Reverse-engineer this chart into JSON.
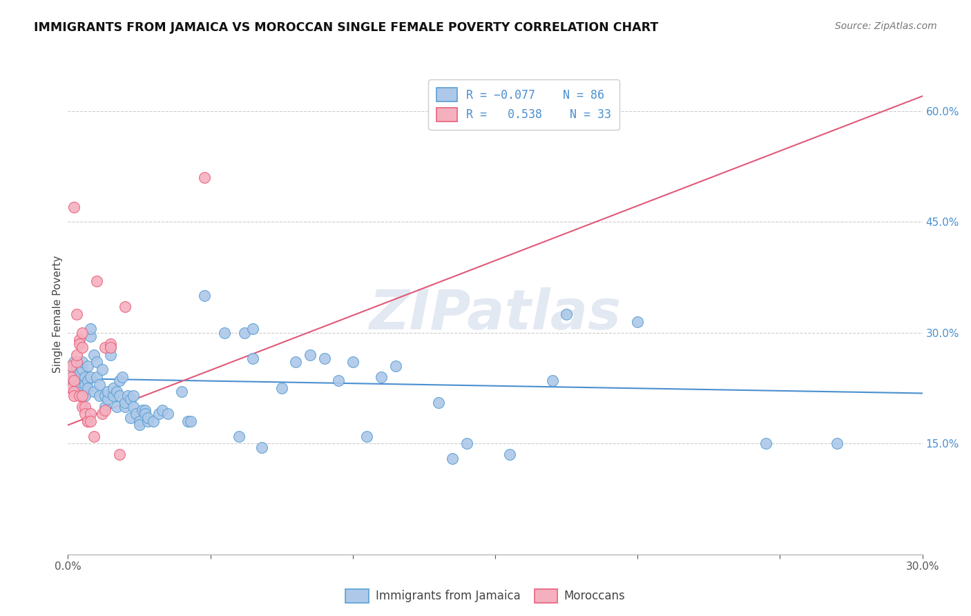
{
  "title": "IMMIGRANTS FROM JAMAICA VS MOROCCAN SINGLE FEMALE POVERTY CORRELATION CHART",
  "source": "Source: ZipAtlas.com",
  "ylabel": "Single Female Poverty",
  "x_min": 0.0,
  "x_max": 0.3,
  "y_min": 0.0,
  "y_max": 0.65,
  "y_ticks_right": [
    0.15,
    0.3,
    0.45,
    0.6
  ],
  "y_tick_labels_right": [
    "15.0%",
    "30.0%",
    "45.0%",
    "60.0%"
  ],
  "legend_label_blue": "Immigrants from Jamaica",
  "legend_label_pink": "Moroccans",
  "blue_color": "#adc8e8",
  "pink_color": "#f5b0c0",
  "blue_edge_color": "#5a9fd4",
  "pink_edge_color": "#e8607a",
  "blue_line_color": "#4a8fd0",
  "pink_line_color": "#e05878",
  "watermark": "ZIPatlas",
  "blue_scatter": [
    [
      0.001,
      0.255
    ],
    [
      0.001,
      0.235
    ],
    [
      0.002,
      0.245
    ],
    [
      0.002,
      0.26
    ],
    [
      0.002,
      0.23
    ],
    [
      0.003,
      0.24
    ],
    [
      0.003,
      0.25
    ],
    [
      0.003,
      0.225
    ],
    [
      0.004,
      0.235
    ],
    [
      0.004,
      0.245
    ],
    [
      0.004,
      0.225
    ],
    [
      0.005,
      0.25
    ],
    [
      0.005,
      0.26
    ],
    [
      0.005,
      0.22
    ],
    [
      0.006,
      0.24
    ],
    [
      0.006,
      0.23
    ],
    [
      0.006,
      0.215
    ],
    [
      0.007,
      0.255
    ],
    [
      0.007,
      0.235
    ],
    [
      0.007,
      0.225
    ],
    [
      0.008,
      0.295
    ],
    [
      0.008,
      0.305
    ],
    [
      0.008,
      0.24
    ],
    [
      0.009,
      0.27
    ],
    [
      0.009,
      0.22
    ],
    [
      0.01,
      0.26
    ],
    [
      0.01,
      0.24
    ],
    [
      0.011,
      0.215
    ],
    [
      0.011,
      0.23
    ],
    [
      0.012,
      0.25
    ],
    [
      0.013,
      0.215
    ],
    [
      0.013,
      0.2
    ],
    [
      0.014,
      0.21
    ],
    [
      0.014,
      0.22
    ],
    [
      0.015,
      0.28
    ],
    [
      0.015,
      0.27
    ],
    [
      0.016,
      0.215
    ],
    [
      0.016,
      0.225
    ],
    [
      0.017,
      0.2
    ],
    [
      0.017,
      0.22
    ],
    [
      0.018,
      0.235
    ],
    [
      0.018,
      0.215
    ],
    [
      0.019,
      0.24
    ],
    [
      0.02,
      0.2
    ],
    [
      0.02,
      0.205
    ],
    [
      0.021,
      0.215
    ],
    [
      0.022,
      0.21
    ],
    [
      0.022,
      0.185
    ],
    [
      0.023,
      0.2
    ],
    [
      0.023,
      0.215
    ],
    [
      0.024,
      0.19
    ],
    [
      0.025,
      0.18
    ],
    [
      0.025,
      0.175
    ],
    [
      0.026,
      0.195
    ],
    [
      0.027,
      0.195
    ],
    [
      0.027,
      0.19
    ],
    [
      0.028,
      0.18
    ],
    [
      0.028,
      0.185
    ],
    [
      0.03,
      0.18
    ],
    [
      0.032,
      0.19
    ],
    [
      0.033,
      0.195
    ],
    [
      0.035,
      0.19
    ],
    [
      0.04,
      0.22
    ],
    [
      0.042,
      0.18
    ],
    [
      0.043,
      0.18
    ],
    [
      0.048,
      0.35
    ],
    [
      0.055,
      0.3
    ],
    [
      0.06,
      0.16
    ],
    [
      0.062,
      0.3
    ],
    [
      0.065,
      0.305
    ],
    [
      0.065,
      0.265
    ],
    [
      0.068,
      0.145
    ],
    [
      0.075,
      0.225
    ],
    [
      0.08,
      0.26
    ],
    [
      0.085,
      0.27
    ],
    [
      0.09,
      0.265
    ],
    [
      0.095,
      0.235
    ],
    [
      0.1,
      0.26
    ],
    [
      0.105,
      0.16
    ],
    [
      0.11,
      0.24
    ],
    [
      0.115,
      0.255
    ],
    [
      0.13,
      0.205
    ],
    [
      0.135,
      0.13
    ],
    [
      0.14,
      0.15
    ],
    [
      0.155,
      0.135
    ],
    [
      0.17,
      0.235
    ],
    [
      0.175,
      0.325
    ],
    [
      0.2,
      0.315
    ],
    [
      0.245,
      0.15
    ],
    [
      0.27,
      0.15
    ]
  ],
  "pink_scatter": [
    [
      0.001,
      0.225
    ],
    [
      0.001,
      0.24
    ],
    [
      0.001,
      0.255
    ],
    [
      0.002,
      0.235
    ],
    [
      0.002,
      0.22
    ],
    [
      0.002,
      0.215
    ],
    [
      0.003,
      0.26
    ],
    [
      0.003,
      0.27
    ],
    [
      0.003,
      0.325
    ],
    [
      0.004,
      0.29
    ],
    [
      0.004,
      0.285
    ],
    [
      0.004,
      0.215
    ],
    [
      0.005,
      0.28
    ],
    [
      0.005,
      0.3
    ],
    [
      0.005,
      0.215
    ],
    [
      0.005,
      0.2
    ],
    [
      0.006,
      0.2
    ],
    [
      0.006,
      0.19
    ],
    [
      0.007,
      0.18
    ],
    [
      0.007,
      0.18
    ],
    [
      0.008,
      0.19
    ],
    [
      0.008,
      0.18
    ],
    [
      0.009,
      0.16
    ],
    [
      0.01,
      0.37
    ],
    [
      0.012,
      0.19
    ],
    [
      0.013,
      0.28
    ],
    [
      0.013,
      0.195
    ],
    [
      0.015,
      0.285
    ],
    [
      0.015,
      0.28
    ],
    [
      0.018,
      0.135
    ],
    [
      0.02,
      0.335
    ],
    [
      0.002,
      0.47
    ],
    [
      0.048,
      0.51
    ]
  ],
  "blue_line_x": [
    0.0,
    0.3
  ],
  "blue_line_y": [
    0.238,
    0.218
  ],
  "pink_line_x": [
    0.0,
    0.3
  ],
  "pink_line_y": [
    0.175,
    0.62
  ]
}
